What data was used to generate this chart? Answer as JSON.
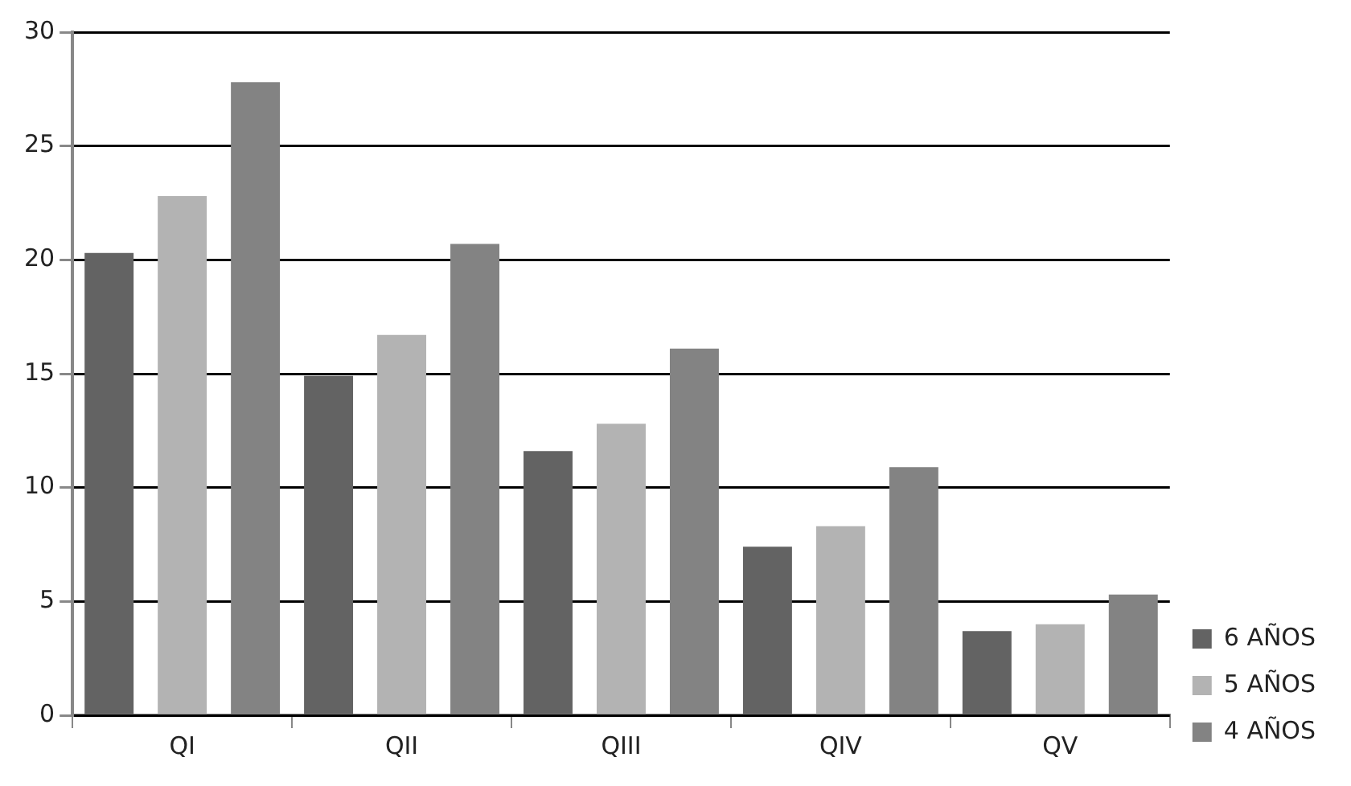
{
  "chart_data": {
    "type": "bar",
    "categories": [
      "QI",
      "QII",
      "QIII",
      "QIV",
      "QV"
    ],
    "series": [
      {
        "name": "6 AÑOS",
        "color": "#636363",
        "values": [
          20.3,
          14.9,
          11.6,
          7.4,
          3.7
        ]
      },
      {
        "name": "5 AÑOS",
        "color": "#b3b3b3",
        "values": [
          22.8,
          16.7,
          12.8,
          8.3,
          4.0
        ]
      },
      {
        "name": "4 AÑOS",
        "color": "#838383",
        "values": [
          27.8,
          20.7,
          16.1,
          10.9,
          5.3
        ]
      }
    ],
    "ylim": [
      0,
      30
    ],
    "yticks": [
      0,
      5,
      10,
      15,
      20,
      25,
      30
    ],
    "grid": "y",
    "legend": "right"
  }
}
